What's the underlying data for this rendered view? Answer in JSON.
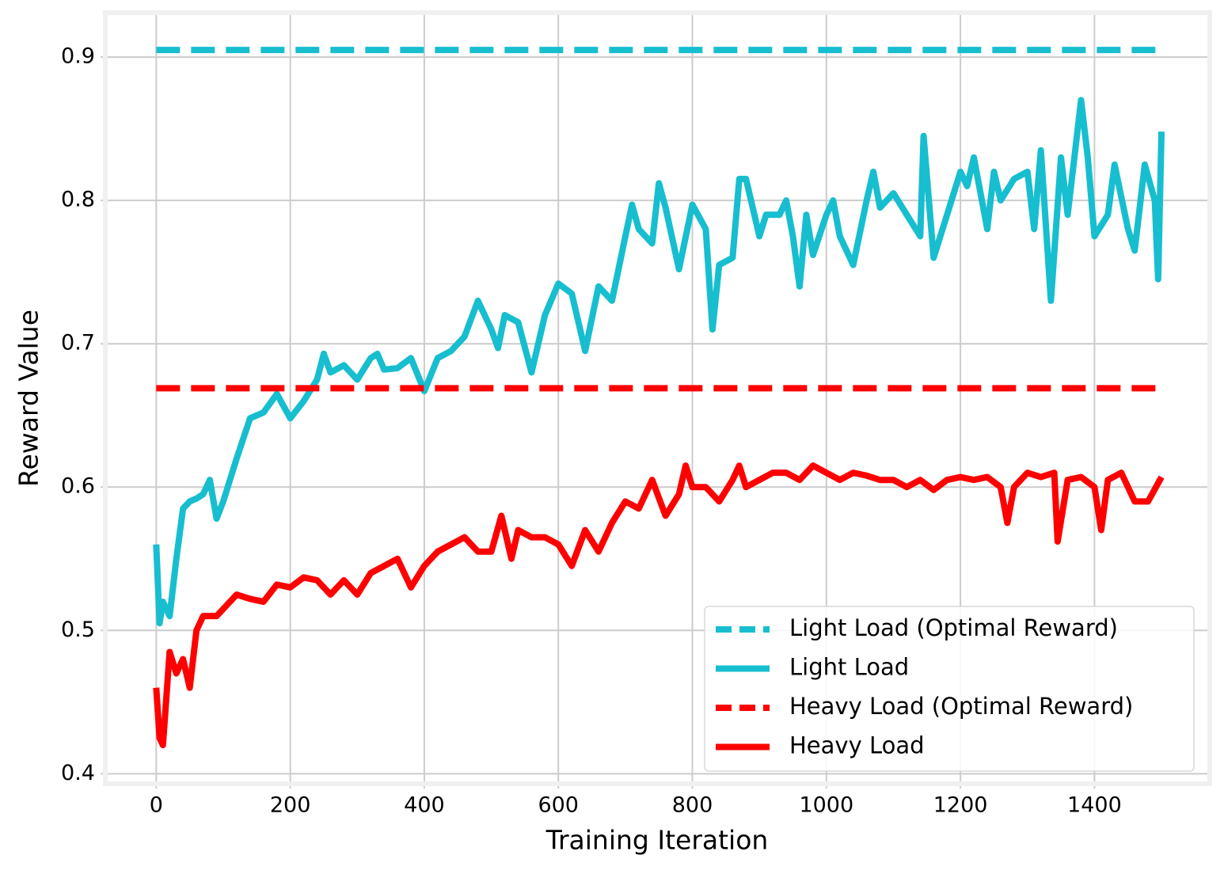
{
  "chart_data": {
    "type": "line",
    "xlabel": "Training Iteration",
    "ylabel": "Reward Value",
    "xlim": [
      -76,
      1572
    ],
    "ylim": [
      0.393,
      0.931
    ],
    "xticks": [
      0,
      200,
      400,
      600,
      800,
      1000,
      1200,
      1400
    ],
    "yticks": [
      0.4,
      0.5,
      0.6,
      0.7,
      0.8,
      0.9
    ],
    "grid": true,
    "legend_location": "lower right",
    "series": [
      {
        "name": "Light Load (Optimal Reward)",
        "color": "#17becf",
        "linestyle": "dashed",
        "x": [
          0,
          1500
        ],
        "values": [
          0.905,
          0.905
        ]
      },
      {
        "name": "Light Load",
        "color": "#17becf",
        "linestyle": "solid",
        "x": [
          0,
          5,
          10,
          20,
          30,
          40,
          50,
          60,
          70,
          80,
          90,
          100,
          120,
          140,
          160,
          180,
          200,
          220,
          240,
          250,
          260,
          280,
          300,
          320,
          330,
          340,
          360,
          380,
          400,
          420,
          440,
          460,
          480,
          500,
          510,
          520,
          540,
          560,
          580,
          600,
          620,
          640,
          660,
          680,
          700,
          710,
          720,
          740,
          750,
          760,
          780,
          800,
          820,
          830,
          840,
          860,
          870,
          880,
          900,
          910,
          930,
          940,
          950,
          960,
          970,
          980,
          1000,
          1010,
          1020,
          1040,
          1060,
          1070,
          1080,
          1100,
          1120,
          1140,
          1145,
          1160,
          1180,
          1200,
          1210,
          1220,
          1240,
          1250,
          1260,
          1280,
          1300,
          1310,
          1320,
          1335,
          1350,
          1360,
          1380,
          1390,
          1400,
          1420,
          1430,
          1450,
          1460,
          1475,
          1490,
          1495,
          1500
        ],
        "values": [
          0.56,
          0.505,
          0.52,
          0.51,
          0.55,
          0.585,
          0.59,
          0.592,
          0.595,
          0.605,
          0.578,
          0.59,
          0.62,
          0.648,
          0.652,
          0.665,
          0.648,
          0.66,
          0.675,
          0.693,
          0.68,
          0.685,
          0.675,
          0.69,
          0.693,
          0.682,
          0.683,
          0.69,
          0.667,
          0.69,
          0.695,
          0.705,
          0.73,
          0.71,
          0.697,
          0.72,
          0.715,
          0.68,
          0.72,
          0.742,
          0.735,
          0.695,
          0.74,
          0.73,
          0.775,
          0.797,
          0.78,
          0.77,
          0.812,
          0.795,
          0.752,
          0.797,
          0.78,
          0.71,
          0.755,
          0.76,
          0.815,
          0.815,
          0.775,
          0.79,
          0.79,
          0.8,
          0.775,
          0.74,
          0.79,
          0.762,
          0.79,
          0.8,
          0.775,
          0.755,
          0.8,
          0.82,
          0.795,
          0.805,
          0.79,
          0.775,
          0.845,
          0.76,
          0.79,
          0.82,
          0.81,
          0.83,
          0.78,
          0.82,
          0.8,
          0.815,
          0.82,
          0.78,
          0.835,
          0.73,
          0.83,
          0.79,
          0.87,
          0.83,
          0.775,
          0.79,
          0.825,
          0.78,
          0.765,
          0.825,
          0.8,
          0.745,
          0.848
        ]
      },
      {
        "name": "Heavy Load (Optimal Reward)",
        "color": "#ff0000",
        "linestyle": "dashed",
        "x": [
          0,
          1500
        ],
        "values": [
          0.669,
          0.669
        ]
      },
      {
        "name": "Heavy Load",
        "color": "#ff0000",
        "linestyle": "solid",
        "x": [
          0,
          5,
          10,
          20,
          30,
          40,
          50,
          60,
          70,
          80,
          90,
          100,
          120,
          140,
          160,
          180,
          200,
          220,
          240,
          260,
          280,
          300,
          320,
          340,
          360,
          380,
          400,
          420,
          440,
          460,
          480,
          500,
          515,
          530,
          540,
          560,
          580,
          600,
          620,
          640,
          660,
          680,
          700,
          720,
          740,
          760,
          780,
          790,
          800,
          820,
          840,
          860,
          870,
          880,
          900,
          920,
          940,
          960,
          980,
          1000,
          1020,
          1040,
          1060,
          1080,
          1100,
          1120,
          1140,
          1160,
          1180,
          1200,
          1220,
          1240,
          1260,
          1270,
          1280,
          1300,
          1320,
          1340,
          1345,
          1360,
          1380,
          1400,
          1410,
          1420,
          1440,
          1460,
          1480,
          1500
        ],
        "values": [
          0.46,
          0.425,
          0.42,
          0.485,
          0.47,
          0.48,
          0.46,
          0.5,
          0.51,
          0.51,
          0.51,
          0.515,
          0.525,
          0.522,
          0.52,
          0.532,
          0.53,
          0.537,
          0.535,
          0.525,
          0.535,
          0.525,
          0.54,
          0.545,
          0.55,
          0.53,
          0.545,
          0.555,
          0.56,
          0.565,
          0.555,
          0.555,
          0.58,
          0.55,
          0.57,
          0.565,
          0.565,
          0.56,
          0.545,
          0.57,
          0.555,
          0.575,
          0.59,
          0.585,
          0.605,
          0.58,
          0.595,
          0.615,
          0.6,
          0.6,
          0.59,
          0.605,
          0.615,
          0.6,
          0.605,
          0.61,
          0.61,
          0.605,
          0.615,
          0.61,
          0.605,
          0.61,
          0.608,
          0.605,
          0.605,
          0.6,
          0.605,
          0.598,
          0.605,
          0.607,
          0.605,
          0.607,
          0.6,
          0.575,
          0.6,
          0.61,
          0.607,
          0.61,
          0.562,
          0.605,
          0.607,
          0.6,
          0.57,
          0.605,
          0.61,
          0.59,
          0.59,
          0.607
        ]
      }
    ]
  }
}
